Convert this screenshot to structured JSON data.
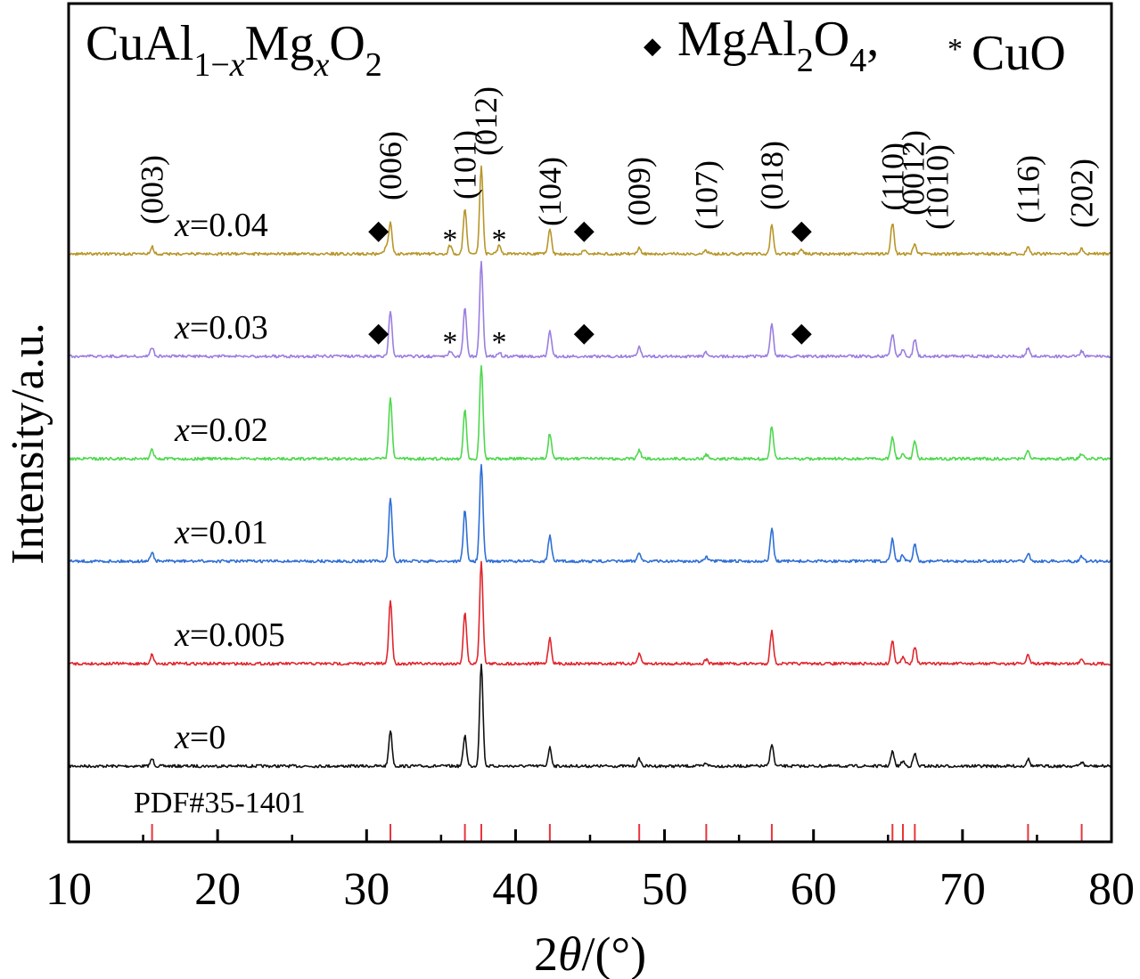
{
  "chart_data": {
    "type": "line",
    "title": "CuAl1−xMgxO2",
    "xlabel": "2θ/(°)",
    "ylabel": "Intensity/a.u.",
    "xlim": [
      10,
      80
    ],
    "xticks": [
      10,
      20,
      30,
      40,
      50,
      60,
      70,
      80
    ],
    "legend": [
      {
        "symbol": "◆",
        "label": "MgAl2O4,"
      },
      {
        "symbol": "*",
        "label": "CuO"
      }
    ],
    "reference": {
      "label": "PDF#35-1401",
      "positions": [
        15.6,
        31.6,
        36.6,
        37.7,
        42.3,
        48.3,
        52.8,
        57.2,
        65.3,
        66.0,
        66.8,
        74.4,
        78.0
      ],
      "color": "#e8343a"
    },
    "peak_labels": [
      {
        "text": "(003)",
        "x": 15.6
      },
      {
        "text": "(006)",
        "x": 31.6
      },
      {
        "text": "(101)",
        "x": 36.6
      },
      {
        "text": "(012)",
        "x": 38.0
      },
      {
        "text": "(104)",
        "x": 42.3
      },
      {
        "text": "(009)",
        "x": 48.3
      },
      {
        "text": "(107)",
        "x": 52.8
      },
      {
        "text": "(018)",
        "x": 57.2
      },
      {
        "text": "(110)",
        "x": 65.3
      },
      {
        "text": "(0012)",
        "x": 66.7
      },
      {
        "text": "(1010)",
        "x": 68.3
      },
      {
        "text": "(116)",
        "x": 74.4
      },
      {
        "text": "(202)",
        "x": 78.0
      }
    ],
    "series": [
      {
        "label_prefix": "x",
        "label_value": "=0",
        "color": "#111111",
        "offset": 0,
        "peaks": [
          [
            15.6,
            0.07
          ],
          [
            31.6,
            0.35
          ],
          [
            36.6,
            0.3
          ],
          [
            37.7,
            1.0
          ],
          [
            42.3,
            0.18
          ],
          [
            48.3,
            0.07
          ],
          [
            52.8,
            0.03
          ],
          [
            57.2,
            0.22
          ],
          [
            65.3,
            0.14
          ],
          [
            66.0,
            0.05
          ],
          [
            66.8,
            0.12
          ],
          [
            74.4,
            0.07
          ],
          [
            78.0,
            0.04
          ]
        ],
        "markers": []
      },
      {
        "label_prefix": "x",
        "label_value": "=0.005",
        "color": "#e0262d",
        "offset": 1,
        "peaks": [
          [
            15.6,
            0.09
          ],
          [
            31.6,
            0.62
          ],
          [
            36.6,
            0.5
          ],
          [
            37.7,
            1.0
          ],
          [
            42.3,
            0.25
          ],
          [
            48.3,
            0.09
          ],
          [
            52.8,
            0.04
          ],
          [
            57.2,
            0.32
          ],
          [
            65.3,
            0.22
          ],
          [
            66.0,
            0.06
          ],
          [
            66.8,
            0.17
          ],
          [
            74.4,
            0.08
          ],
          [
            78.0,
            0.05
          ]
        ],
        "markers": []
      },
      {
        "label_prefix": "x",
        "label_value": "=0.01",
        "color": "#2f6fd6",
        "offset": 2,
        "peaks": [
          [
            15.6,
            0.09
          ],
          [
            31.6,
            0.62
          ],
          [
            36.6,
            0.5
          ],
          [
            37.7,
            0.95
          ],
          [
            42.3,
            0.25
          ],
          [
            48.3,
            0.09
          ],
          [
            52.8,
            0.04
          ],
          [
            57.2,
            0.32
          ],
          [
            65.3,
            0.22
          ],
          [
            66.0,
            0.06
          ],
          [
            66.8,
            0.17
          ],
          [
            74.4,
            0.08
          ],
          [
            78.0,
            0.05
          ]
        ],
        "markers": []
      },
      {
        "label_prefix": "x",
        "label_value": "=0.02",
        "color": "#4ed84e",
        "offset": 3,
        "peaks": [
          [
            15.6,
            0.09
          ],
          [
            31.6,
            0.6
          ],
          [
            36.6,
            0.48
          ],
          [
            37.7,
            0.92
          ],
          [
            42.3,
            0.25
          ],
          [
            48.3,
            0.09
          ],
          [
            52.8,
            0.04
          ],
          [
            57.2,
            0.32
          ],
          [
            65.3,
            0.22
          ],
          [
            66.0,
            0.06
          ],
          [
            66.8,
            0.17
          ],
          [
            74.4,
            0.08
          ],
          [
            78.0,
            0.05
          ]
        ],
        "markers": []
      },
      {
        "label_prefix": "x",
        "label_value": "=0.03",
        "color": "#9b7ee0",
        "offset": 4,
        "peaks": [
          [
            15.6,
            0.09
          ],
          [
            31.6,
            0.45
          ],
          [
            35.6,
            0.05
          ],
          [
            36.6,
            0.48
          ],
          [
            37.7,
            0.92
          ],
          [
            38.9,
            0.04
          ],
          [
            42.3,
            0.25
          ],
          [
            48.3,
            0.09
          ],
          [
            52.8,
            0.04
          ],
          [
            57.2,
            0.32
          ],
          [
            65.3,
            0.22
          ],
          [
            66.0,
            0.06
          ],
          [
            66.8,
            0.17
          ],
          [
            74.4,
            0.08
          ],
          [
            78.0,
            0.05
          ]
        ],
        "markers": [
          {
            "symbol": "◆",
            "x": 30.8
          },
          {
            "symbol": "*",
            "x": 35.6
          },
          {
            "symbol": "*",
            "x": 38.9
          },
          {
            "symbol": "◆",
            "x": 44.6
          },
          {
            "symbol": "◆",
            "x": 59.2
          }
        ]
      },
      {
        "label_prefix": "x",
        "label_value": "=0.04",
        "color": "#b8962a",
        "offset": 5,
        "peaks": [
          [
            15.6,
            0.07
          ],
          [
            31.3,
            0.07
          ],
          [
            31.6,
            0.3
          ],
          [
            35.6,
            0.08
          ],
          [
            36.6,
            0.45
          ],
          [
            37.7,
            0.85
          ],
          [
            38.9,
            0.08
          ],
          [
            42.3,
            0.25
          ],
          [
            44.6,
            0.03
          ],
          [
            48.3,
            0.06
          ],
          [
            52.8,
            0.03
          ],
          [
            57.2,
            0.28
          ],
          [
            59.2,
            0.04
          ],
          [
            65.3,
            0.3
          ],
          [
            66.8,
            0.1
          ],
          [
            74.4,
            0.08
          ],
          [
            78.0,
            0.05
          ]
        ],
        "markers": [
          {
            "symbol": "◆",
            "x": 30.8
          },
          {
            "symbol": "*",
            "x": 35.6
          },
          {
            "symbol": "*",
            "x": 38.9
          },
          {
            "symbol": "◆",
            "x": 44.6
          },
          {
            "symbol": "◆",
            "x": 59.2
          }
        ]
      }
    ]
  }
}
